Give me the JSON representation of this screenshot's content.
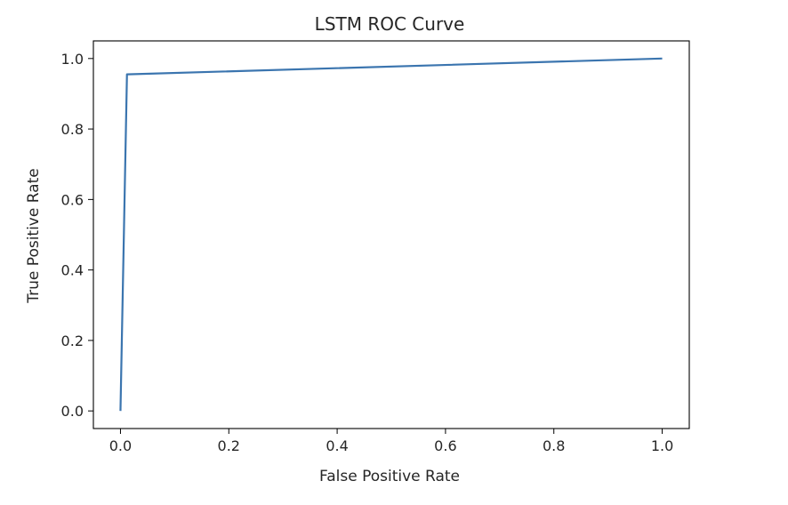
{
  "chart_data": {
    "type": "line",
    "title": "LSTM ROC Curve",
    "xlabel": "False Positive Rate",
    "ylabel": "True Positive Rate",
    "xlim": [
      -0.05,
      1.05
    ],
    "ylim": [
      -0.05,
      1.05
    ],
    "xticks": [
      0.0,
      0.2,
      0.4,
      0.6,
      0.8,
      1.0
    ],
    "xtick_labels": [
      "0.0",
      "0.2",
      "0.4",
      "0.6",
      "0.8",
      "1.0"
    ],
    "yticks": [
      0.0,
      0.2,
      0.4,
      0.6,
      0.8,
      1.0
    ],
    "ytick_labels": [
      "0.0",
      "0.2",
      "0.4",
      "0.6",
      "0.8",
      "1.0"
    ],
    "grid": false,
    "series": [
      {
        "x": [
          0.0,
          0.012,
          1.0
        ],
        "y": [
          0.0,
          0.955,
          1.0
        ],
        "color": "#3b75af"
      }
    ]
  }
}
